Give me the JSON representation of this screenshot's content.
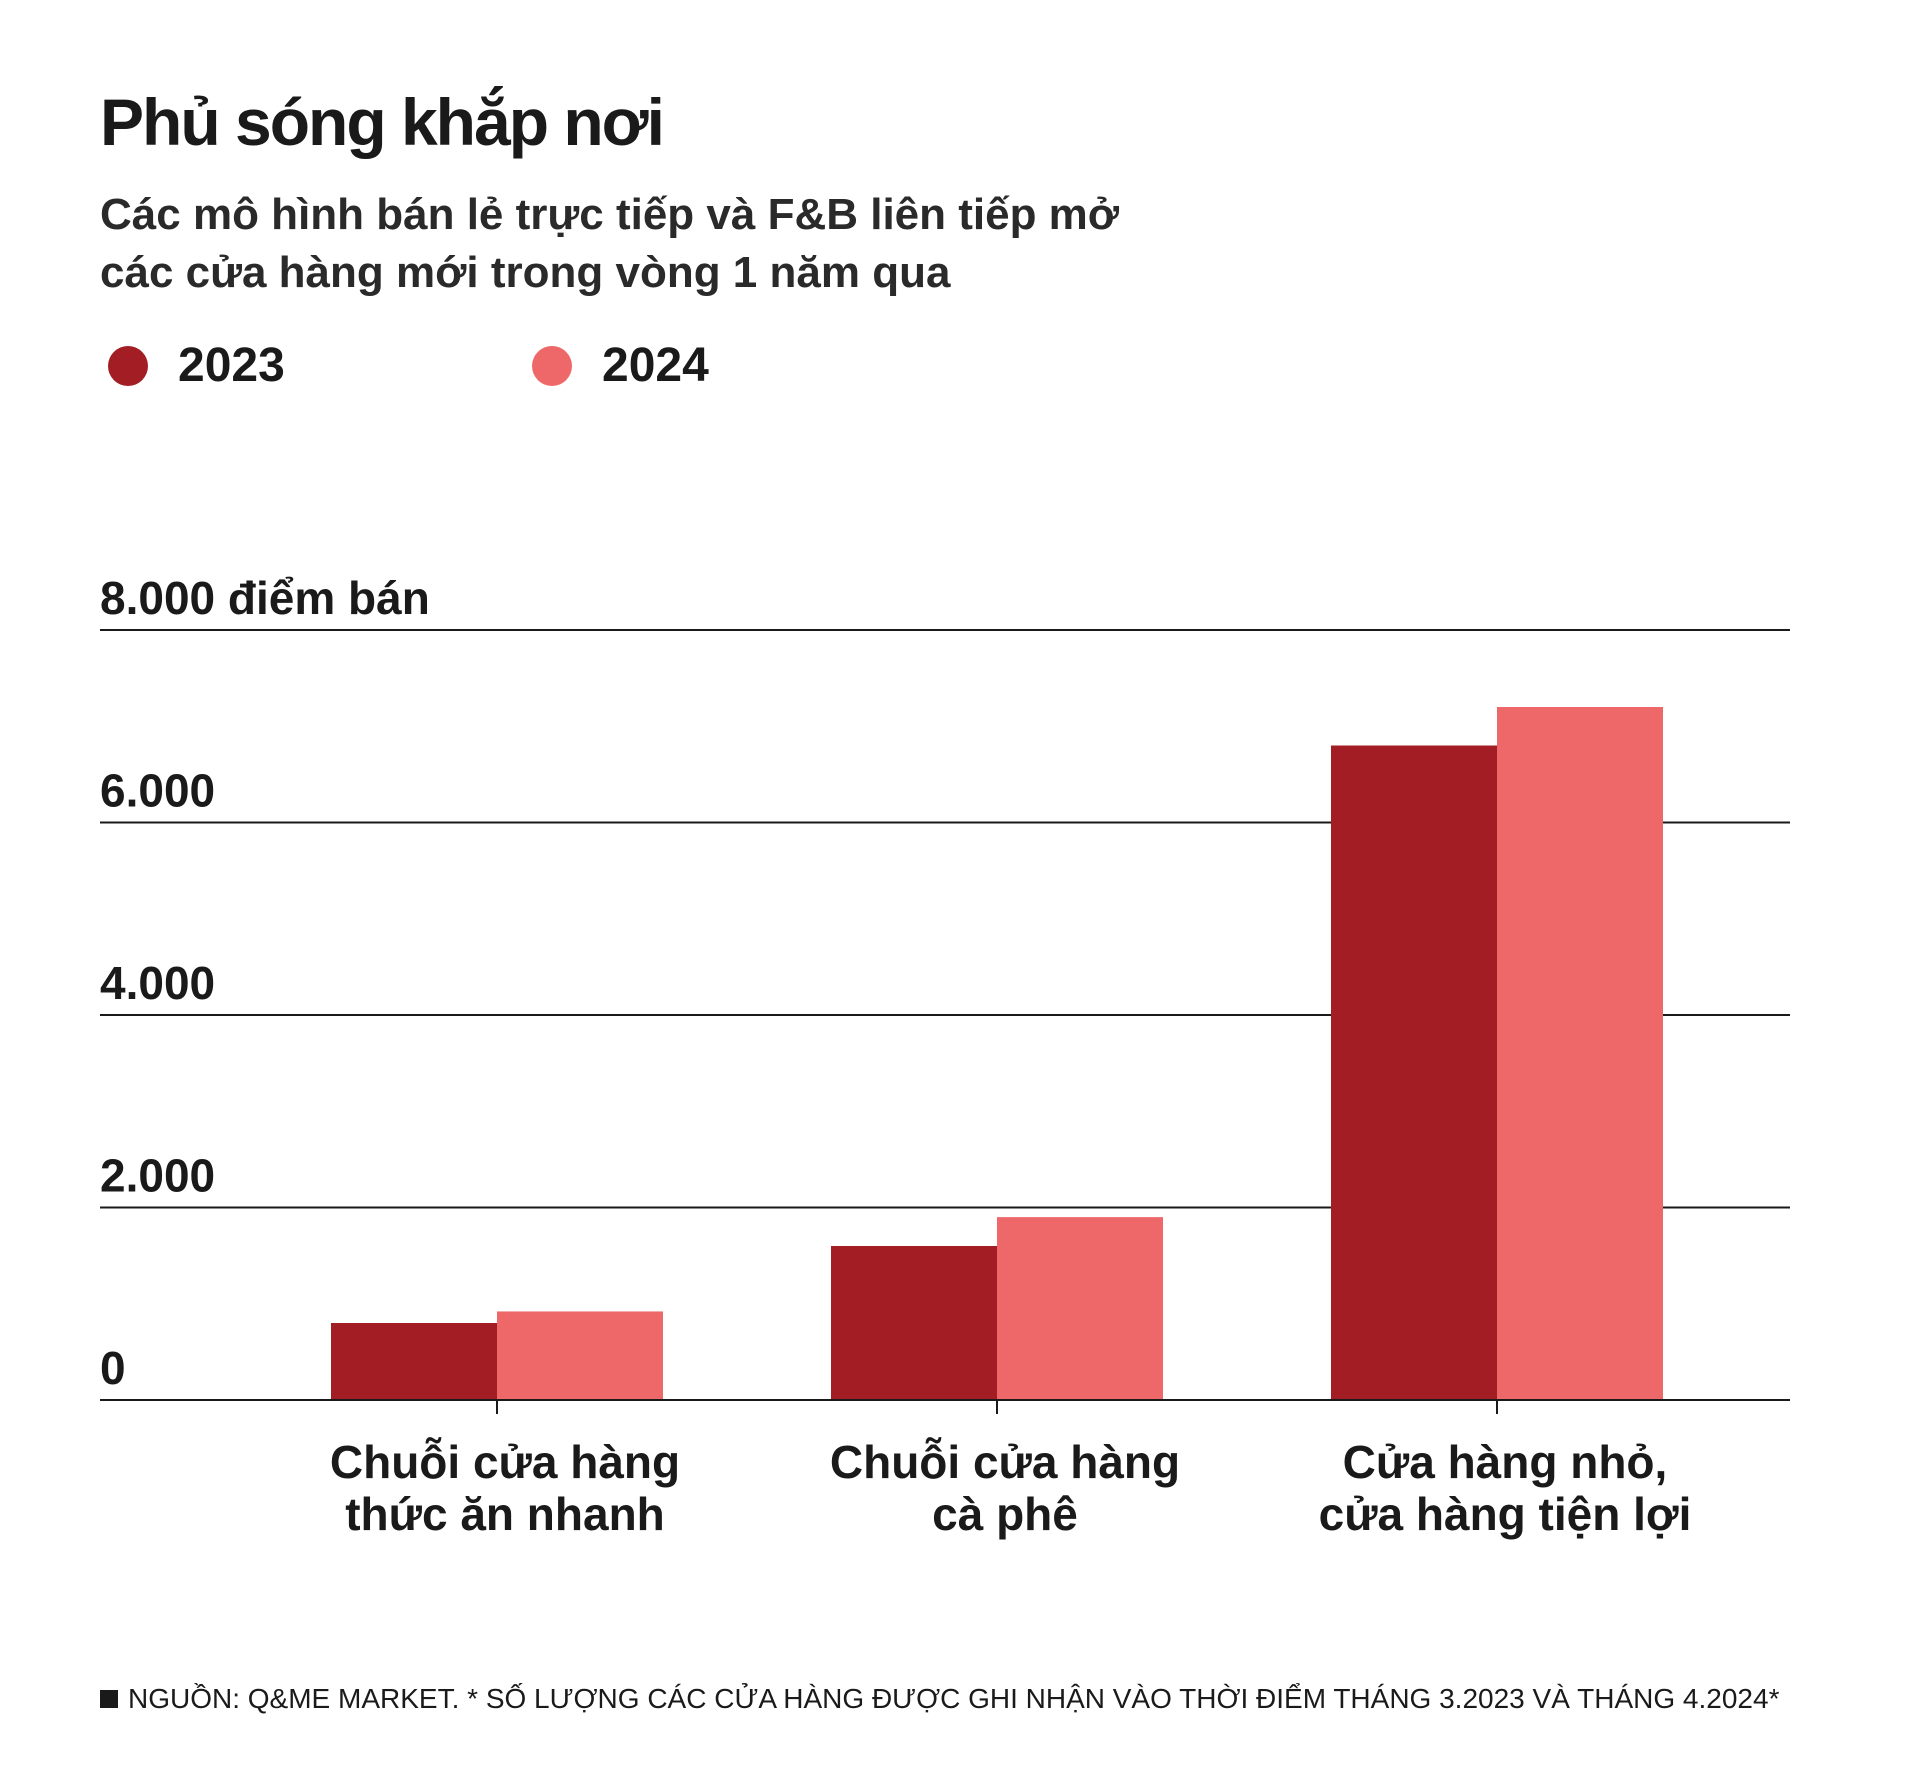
{
  "title": "Phủ sóng khắp nơi",
  "subtitle_lines": [
    "Các mô hình bán lẻ trực tiếp và F&B liên tiếp mở",
    "các cửa hàng mới trong vòng 1 năm qua"
  ],
  "colors": {
    "series_2023": "#a21d24",
    "series_2024": "#ef6869",
    "text": "#1a1a1a",
    "grid": "#1a1a1a"
  },
  "chart_data": {
    "type": "bar",
    "categories": [
      [
        "Chuỗi cửa hàng",
        "thức ăn nhanh"
      ],
      [
        "Chuỗi cửa hàng",
        "cà phê"
      ],
      [
        "Cửa hàng nhỏ,",
        "cửa hàng tiện lợi"
      ]
    ],
    "series": [
      {
        "name": "2023",
        "values": [
          800,
          1600,
          6800
        ]
      },
      {
        "name": "2024",
        "values": [
          920,
          1900,
          7200
        ]
      }
    ],
    "y_ticks": [
      {
        "value": 0,
        "label": "0"
      },
      {
        "value": 2000,
        "label": "2.000"
      },
      {
        "value": 4000,
        "label": "4.000"
      },
      {
        "value": 6000,
        "label": "6.000"
      },
      {
        "value": 8000,
        "label": "8.000 điểm bán"
      }
    ],
    "ylim": [
      0,
      8000
    ],
    "grid": true,
    "legend_position": "top-left"
  },
  "source": "NGUỒN: Q&ME MARKET. * SỐ LƯỢNG CÁC CỬA HÀNG ĐƯỢC GHI NHẬN VÀO THỜI ĐIỂM THÁNG 3.2023 VÀ THÁNG 4.2024*"
}
